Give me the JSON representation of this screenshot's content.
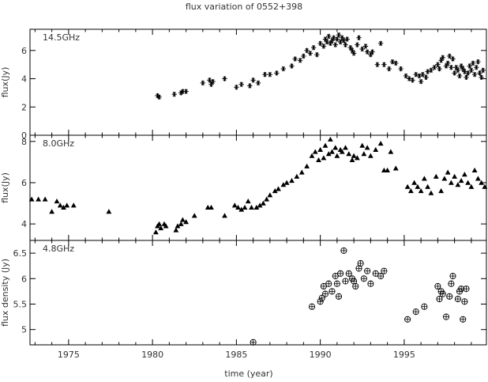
{
  "chart_data": {
    "type": "scatter",
    "title": "flux variation of 0552+398",
    "xlabel": "time (year)",
    "xlim": [
      1972.7,
      1999.9
    ],
    "x_ticks": [
      1975,
      1980,
      1985,
      1990,
      1995
    ],
    "panels": [
      {
        "label": "14.5GHz",
        "ylabel": "flux(Jy)",
        "ylim": [
          0,
          7.5
        ],
        "y_ticks": [
          0,
          2,
          4,
          6
        ],
        "y_tick_labels": [
          "0",
          "2",
          "4",
          "6"
        ],
        "marker": "asterisk",
        "points": [
          [
            1980.3,
            2.8
          ],
          [
            1980.4,
            2.7
          ],
          [
            1981.3,
            2.9
          ],
          [
            1981.7,
            3.0
          ],
          [
            1981.8,
            3.1
          ],
          [
            1982.0,
            3.1
          ],
          [
            1983.0,
            3.7
          ],
          [
            1983.4,
            3.9
          ],
          [
            1983.5,
            3.6
          ],
          [
            1983.6,
            3.8
          ],
          [
            1984.3,
            4.0
          ],
          [
            1985.0,
            3.4
          ],
          [
            1985.3,
            3.6
          ],
          [
            1985.8,
            3.5
          ],
          [
            1986.0,
            3.9
          ],
          [
            1986.3,
            3.7
          ],
          [
            1986.7,
            4.3
          ],
          [
            1987.0,
            4.3
          ],
          [
            1987.4,
            4.4
          ],
          [
            1987.8,
            4.7
          ],
          [
            1988.3,
            4.9
          ],
          [
            1988.5,
            5.4
          ],
          [
            1988.8,
            5.3
          ],
          [
            1989.0,
            5.6
          ],
          [
            1989.2,
            6.0
          ],
          [
            1989.4,
            5.8
          ],
          [
            1989.6,
            6.2
          ],
          [
            1989.8,
            5.7
          ],
          [
            1990.0,
            6.5
          ],
          [
            1990.2,
            6.3
          ],
          [
            1990.3,
            6.8
          ],
          [
            1990.4,
            6.6
          ],
          [
            1990.5,
            7.0
          ],
          [
            1990.6,
            6.5
          ],
          [
            1990.7,
            6.7
          ],
          [
            1990.8,
            6.9
          ],
          [
            1990.9,
            6.4
          ],
          [
            1991.0,
            6.8
          ],
          [
            1991.1,
            7.1
          ],
          [
            1991.2,
            6.6
          ],
          [
            1991.3,
            6.9
          ],
          [
            1991.4,
            6.7
          ],
          [
            1991.5,
            6.4
          ],
          [
            1991.6,
            6.8
          ],
          [
            1991.8,
            6.2
          ],
          [
            1991.9,
            6.0
          ],
          [
            1992.0,
            5.8
          ],
          [
            1992.2,
            6.4
          ],
          [
            1992.3,
            6.9
          ],
          [
            1992.5,
            6.1
          ],
          [
            1992.7,
            6.3
          ],
          [
            1992.8,
            5.9
          ],
          [
            1993.0,
            5.7
          ],
          [
            1993.1,
            5.9
          ],
          [
            1993.4,
            5.0
          ],
          [
            1993.6,
            6.5
          ],
          [
            1993.8,
            5.0
          ],
          [
            1994.1,
            4.7
          ],
          [
            1994.3,
            5.2
          ],
          [
            1994.5,
            5.1
          ],
          [
            1994.8,
            4.7
          ],
          [
            1995.1,
            4.2
          ],
          [
            1995.3,
            4.0
          ],
          [
            1995.5,
            3.9
          ],
          [
            1995.7,
            4.3
          ],
          [
            1995.9,
            4.2
          ],
          [
            1996.0,
            3.8
          ],
          [
            1996.1,
            4.3
          ],
          [
            1996.3,
            4.1
          ],
          [
            1996.4,
            4.5
          ],
          [
            1996.6,
            4.6
          ],
          [
            1996.8,
            4.8
          ],
          [
            1997.0,
            5.0
          ],
          [
            1997.1,
            4.7
          ],
          [
            1997.2,
            5.3
          ],
          [
            1997.3,
            5.5
          ],
          [
            1997.5,
            4.9
          ],
          [
            1997.6,
            5.1
          ],
          [
            1997.7,
            5.6
          ],
          [
            1997.8,
            4.8
          ],
          [
            1997.9,
            5.4
          ],
          [
            1998.0,
            4.4
          ],
          [
            1998.1,
            4.8
          ],
          [
            1998.2,
            4.6
          ],
          [
            1998.3,
            4.2
          ],
          [
            1998.4,
            4.9
          ],
          [
            1998.5,
            4.7
          ],
          [
            1998.6,
            4.5
          ],
          [
            1998.7,
            4.1
          ],
          [
            1998.8,
            4.4
          ],
          [
            1998.9,
            4.9
          ],
          [
            1999.0,
            4.6
          ],
          [
            1999.1,
            5.1
          ],
          [
            1999.2,
            4.3
          ],
          [
            1999.3,
            4.8
          ],
          [
            1999.4,
            5.2
          ],
          [
            1999.5,
            4.4
          ],
          [
            1999.6,
            4.1
          ],
          [
            1999.7,
            4.6
          ]
        ]
      },
      {
        "label": "8.0GHz",
        "ylabel": "flux(Jy)",
        "ylim": [
          3.2,
          8.3
        ],
        "y_ticks": [
          4,
          6,
          8
        ],
        "y_tick_labels": [
          "4",
          "6",
          "8"
        ],
        "marker": "triangle",
        "points": [
          [
            1972.8,
            5.2
          ],
          [
            1973.2,
            5.2
          ],
          [
            1973.6,
            5.2
          ],
          [
            1974.0,
            4.6
          ],
          [
            1974.3,
            5.1
          ],
          [
            1974.5,
            4.9
          ],
          [
            1974.7,
            4.8
          ],
          [
            1974.9,
            4.9
          ],
          [
            1975.3,
            4.9
          ],
          [
            1977.4,
            4.6
          ],
          [
            1980.2,
            3.6
          ],
          [
            1980.3,
            3.9
          ],
          [
            1980.4,
            4.0
          ],
          [
            1980.5,
            3.8
          ],
          [
            1980.7,
            4.0
          ],
          [
            1980.8,
            3.9
          ],
          [
            1981.4,
            3.7
          ],
          [
            1981.5,
            3.9
          ],
          [
            1981.7,
            4.0
          ],
          [
            1981.8,
            4.2
          ],
          [
            1982.0,
            4.1
          ],
          [
            1982.5,
            4.4
          ],
          [
            1983.3,
            4.8
          ],
          [
            1983.5,
            4.8
          ],
          [
            1984.3,
            4.4
          ],
          [
            1984.9,
            4.9
          ],
          [
            1985.1,
            4.8
          ],
          [
            1985.3,
            4.7
          ],
          [
            1985.5,
            4.8
          ],
          [
            1985.7,
            5.1
          ],
          [
            1985.9,
            4.8
          ],
          [
            1986.2,
            4.8
          ],
          [
            1986.4,
            4.9
          ],
          [
            1986.6,
            5.0
          ],
          [
            1986.8,
            5.2
          ],
          [
            1987.0,
            5.4
          ],
          [
            1987.3,
            5.6
          ],
          [
            1987.5,
            5.7
          ],
          [
            1987.8,
            5.9
          ],
          [
            1988.0,
            6.0
          ],
          [
            1988.3,
            6.1
          ],
          [
            1988.6,
            6.3
          ],
          [
            1988.9,
            6.5
          ],
          [
            1989.2,
            6.8
          ],
          [
            1989.5,
            7.3
          ],
          [
            1989.7,
            7.5
          ],
          [
            1989.9,
            7.1
          ],
          [
            1990.0,
            7.6
          ],
          [
            1990.2,
            7.2
          ],
          [
            1990.3,
            7.8
          ],
          [
            1990.5,
            7.4
          ],
          [
            1990.6,
            8.1
          ],
          [
            1990.7,
            7.5
          ],
          [
            1990.9,
            7.7
          ],
          [
            1991.0,
            7.3
          ],
          [
            1991.2,
            7.6
          ],
          [
            1991.3,
            7.5
          ],
          [
            1991.5,
            7.7
          ],
          [
            1991.7,
            7.4
          ],
          [
            1991.9,
            7.1
          ],
          [
            1992.0,
            7.3
          ],
          [
            1992.2,
            7.2
          ],
          [
            1992.5,
            7.8
          ],
          [
            1992.6,
            7.4
          ],
          [
            1992.8,
            7.7
          ],
          [
            1993.0,
            7.3
          ],
          [
            1993.3,
            7.6
          ],
          [
            1993.6,
            7.9
          ],
          [
            1993.8,
            6.6
          ],
          [
            1994.0,
            6.6
          ],
          [
            1994.2,
            7.5
          ],
          [
            1994.5,
            6.7
          ],
          [
            1995.2,
            5.8
          ],
          [
            1995.4,
            5.6
          ],
          [
            1995.6,
            6.0
          ],
          [
            1995.8,
            5.8
          ],
          [
            1996.0,
            5.6
          ],
          [
            1996.2,
            6.2
          ],
          [
            1996.4,
            5.8
          ],
          [
            1996.6,
            5.5
          ],
          [
            1996.9,
            6.3
          ],
          [
            1997.2,
            5.6
          ],
          [
            1997.4,
            6.2
          ],
          [
            1997.6,
            6.5
          ],
          [
            1997.8,
            6.0
          ],
          [
            1998.0,
            6.3
          ],
          [
            1998.2,
            5.9
          ],
          [
            1998.4,
            6.1
          ],
          [
            1998.6,
            6.4
          ],
          [
            1998.8,
            6.0
          ],
          [
            1999.0,
            5.8
          ],
          [
            1999.2,
            6.6
          ],
          [
            1999.4,
            6.2
          ],
          [
            1999.6,
            6.0
          ],
          [
            1999.8,
            5.8
          ]
        ]
      },
      {
        "label": "4.8GHz",
        "ylabel": "flux density (Jy)",
        "ylim": [
          4.7,
          6.75
        ],
        "y_ticks": [
          5,
          5.5,
          6,
          6.5
        ],
        "y_tick_labels": [
          "5",
          "5.5",
          "6",
          "6.5"
        ],
        "marker": "circle-plus",
        "points": [
          [
            1986.0,
            4.75
          ],
          [
            1989.5,
            5.45
          ],
          [
            1990.0,
            5.55
          ],
          [
            1990.1,
            5.62
          ],
          [
            1990.2,
            5.85
          ],
          [
            1990.3,
            5.7
          ],
          [
            1990.5,
            5.9
          ],
          [
            1990.7,
            5.75
          ],
          [
            1990.9,
            6.05
          ],
          [
            1991.0,
            5.9
          ],
          [
            1991.1,
            5.65
          ],
          [
            1991.2,
            6.1
          ],
          [
            1991.4,
            6.55
          ],
          [
            1991.5,
            5.95
          ],
          [
            1991.7,
            6.1
          ],
          [
            1991.9,
            6.0
          ],
          [
            1992.0,
            5.95
          ],
          [
            1992.1,
            5.85
          ],
          [
            1992.3,
            6.2
          ],
          [
            1992.4,
            6.3
          ],
          [
            1992.6,
            6.0
          ],
          [
            1992.8,
            6.15
          ],
          [
            1993.0,
            5.9
          ],
          [
            1993.3,
            6.1
          ],
          [
            1993.6,
            6.05
          ],
          [
            1993.8,
            6.15
          ],
          [
            1995.2,
            5.2
          ],
          [
            1995.7,
            5.35
          ],
          [
            1996.2,
            5.45
          ],
          [
            1997.0,
            5.85
          ],
          [
            1997.1,
            5.6
          ],
          [
            1997.2,
            5.75
          ],
          [
            1997.3,
            5.7
          ],
          [
            1997.5,
            5.25
          ],
          [
            1997.7,
            5.65
          ],
          [
            1997.8,
            5.9
          ],
          [
            1997.9,
            6.05
          ],
          [
            1998.2,
            5.6
          ],
          [
            1998.3,
            5.75
          ],
          [
            1998.4,
            5.8
          ],
          [
            1998.5,
            5.2
          ],
          [
            1998.6,
            5.55
          ],
          [
            1998.7,
            5.8
          ]
        ]
      }
    ]
  }
}
